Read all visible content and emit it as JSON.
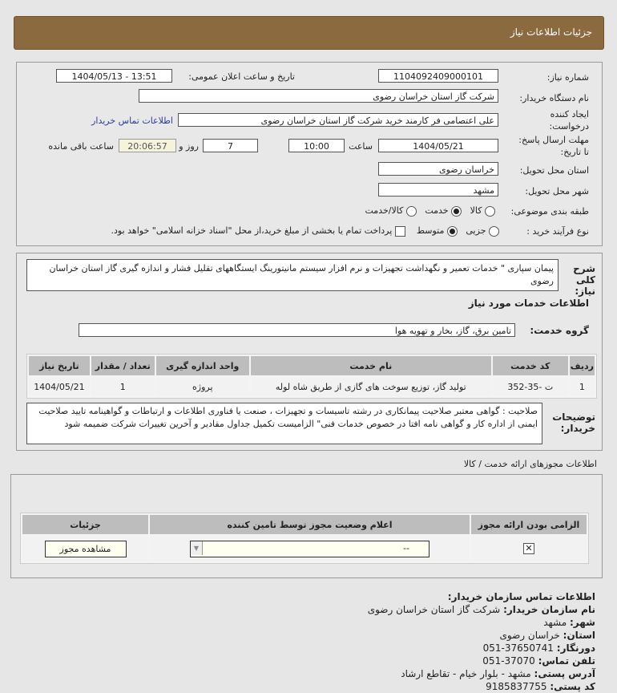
{
  "header": {
    "title": "جزئیات اطلاعات نیاز"
  },
  "form": {
    "need_number_label": "شماره نیاز:",
    "need_number": "1104092409000101",
    "announce_label": "تاریخ و ساعت اعلان عمومی:",
    "announce_value": "1404/05/13 - 13:51",
    "buyer_label": "نام دستگاه خریدار:",
    "buyer_value": "شرکت گاز استان خراسان رضوی",
    "creator_label_1": "ایجاد کننده",
    "creator_label_2": "درخواست:",
    "creator_value": "علی اعتصامی فر کارمند خرید شرکت گاز استان خراسان رضوی",
    "contact_link": "اطلاعات تماس خریدار",
    "deadline_label_1": "مهلت ارسال پاسخ:",
    "deadline_label_2": "تا تاریخ:",
    "deadline_date": "1404/05/21",
    "time_label": "ساعت",
    "deadline_time": "10:00",
    "days_value": "7",
    "days_label": "روز و",
    "remaining_time": "20:06:57",
    "remaining_label": "ساعت باقی مانده",
    "province_label": "استان محل تحویل:",
    "province_value": "خراسان رضوی",
    "city_label": "شهر محل تحویل:",
    "city_value": "مشهد",
    "category_label": "طبقه بندی موضوعی:",
    "category_options": [
      {
        "label": "کالا",
        "selected": false
      },
      {
        "label": "خدمت",
        "selected": true
      },
      {
        "label": "کالا/خدمت",
        "selected": false
      }
    ],
    "process_label": "نوع فرآیند خرید :",
    "process_options": [
      {
        "label": "جزیی",
        "selected": false
      },
      {
        "label": "متوسط",
        "selected": true
      }
    ],
    "payment_note": "پرداخت تمام یا بخشی از مبلغ خرید،از محل \"اسناد خزانه اسلامی\" خواهد بود."
  },
  "details": {
    "description_label": "شرح کلی نیاز:",
    "description": "پیمان سپاری \" خدمات تعمیر و نگهداشت تجهیزات و نرم افزار سیستم مانیتورینگ ایستگاههای تقلیل فشار و اندازه گیری گاز استان خراسان رضوی",
    "services_title": "اطلاعات خدمات مورد نیاز",
    "group_label": "گروه خدمت:",
    "group_value": "تامین برق، گاز، بخار و تهویه هوا",
    "table": {
      "headers": [
        "ردیف",
        "کد خدمت",
        "نام خدمت",
        "واحد اندازه گیری",
        "تعداد / مقدار",
        "تاریخ نیاز"
      ],
      "rows": [
        [
          "1",
          "ت -35-352",
          "تولید گاز، توزیع سوخت های گازی از طریق شاه لوله",
          "پروژه",
          "1",
          "1404/05/21"
        ]
      ]
    },
    "notes_label": "توضیحات خریدار:",
    "notes": "صلاحیت : گواهی معتبر صلاحیت پیمانکاری در رشته تاسیسات و تجهیزات ، صنعت یا فناوری اطلاعات و ارتباطات و گواهینامه تایید صلاحیت ایمنی از اداره کار و گواهی نامه افتا در خصوص خدمات فنی\" الزامیست تکمیل جداول مقادیر و آخرین تغییرات شرکت ضمیمه شود"
  },
  "permits": {
    "title": "اطلاعات مجوزهای ارائه خدمت / کالا",
    "headers": [
      "الزامی بودن ارائه مجوز",
      "اعلام وضعیت مجوز توسط تامین کننده",
      "جزئیات"
    ],
    "required_checked": true,
    "status_value": "--",
    "view_button": "مشاهده مجوز"
  },
  "contact": {
    "title": "اطلاعات تماس سازمان خریدار:",
    "org_label": "نام سازمان خریدار:",
    "org": "شرکت گاز استان خراسان رضوی",
    "city_label": "شهر:",
    "city": "مشهد",
    "province_label": "استان:",
    "province": "خراسان رضوی",
    "fax_label": "دورنگار:",
    "fax": "37650741-051",
    "phone_label": "تلفن تماس:",
    "phone": "37070-051",
    "address_label": "آدرس پستی:",
    "address": "مشهد - بلوار خیام - تقاطع ارشاد",
    "postal_label": "کد پستی:",
    "postal": "9185837755"
  }
}
